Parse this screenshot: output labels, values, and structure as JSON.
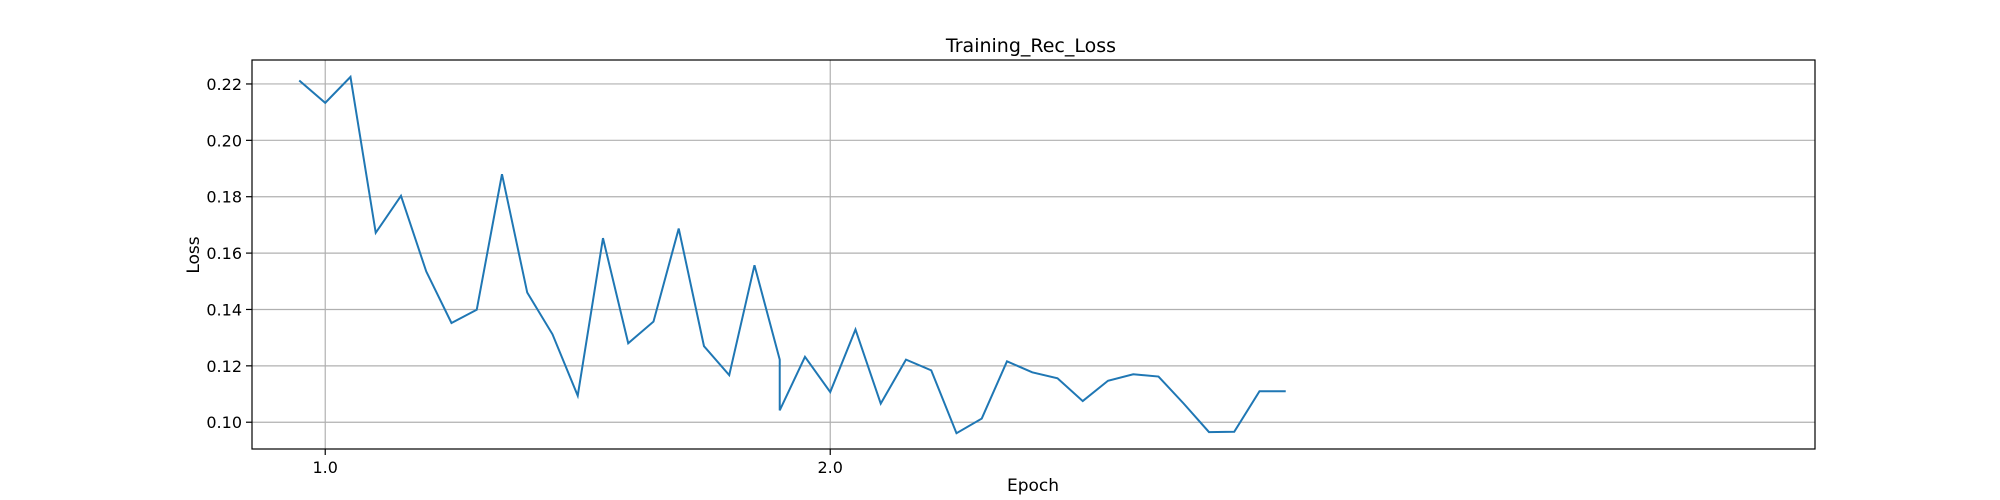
{
  "chart_data": {
    "type": "line",
    "title": "Training_Rec_Loss",
    "xlabel": "Epoch",
    "ylabel": "Loss",
    "xlim": [
      0.855,
      3.95
    ],
    "ylim": [
      0.0905,
      0.2285
    ],
    "xticks": [
      {
        "value": 1.0,
        "label": "1.0"
      },
      {
        "value": 2.0,
        "label": "2.0"
      }
    ],
    "yticks": [
      {
        "value": 0.1,
        "label": "0.10"
      },
      {
        "value": 0.12,
        "label": "0.12"
      },
      {
        "value": 0.14,
        "label": "0.14"
      },
      {
        "value": 0.16,
        "label": "0.16"
      },
      {
        "value": 0.18,
        "label": "0.18"
      },
      {
        "value": 0.2,
        "label": "0.20"
      },
      {
        "value": 0.22,
        "label": "0.22"
      }
    ],
    "grid": true,
    "series": [
      {
        "color": "#1f77b4",
        "x": [
          0.95,
          1.0,
          1.05,
          1.1,
          1.15,
          1.2,
          1.25,
          1.3,
          1.35,
          1.4,
          1.45,
          1.5,
          1.55,
          1.6,
          1.65,
          1.7,
          1.75,
          1.8,
          1.85,
          1.9,
          1.9,
          1.95,
          2.0,
          2.05,
          2.1,
          2.15,
          2.2,
          2.25,
          2.3,
          2.35,
          2.4,
          2.45,
          2.5,
          2.55,
          2.6,
          2.65,
          2.7,
          2.75,
          2.8,
          2.85,
          2.9
        ],
        "y": [
          0.221,
          0.2133,
          0.2225,
          0.1672,
          0.1803,
          0.1535,
          0.1352,
          0.1399,
          0.188,
          0.146,
          0.1312,
          0.1094,
          0.1653,
          0.128,
          0.1357,
          0.1687,
          0.127,
          0.1167,
          0.1557,
          0.1222,
          0.1042,
          0.1232,
          0.1107,
          0.1329,
          0.1066,
          0.1222,
          0.1184,
          0.0961,
          0.1013,
          0.1216,
          0.1177,
          0.1156,
          0.1075,
          0.1147,
          0.117,
          0.1162,
          0.1066,
          0.0965,
          0.0966,
          0.111,
          0.111
        ]
      }
    ]
  }
}
